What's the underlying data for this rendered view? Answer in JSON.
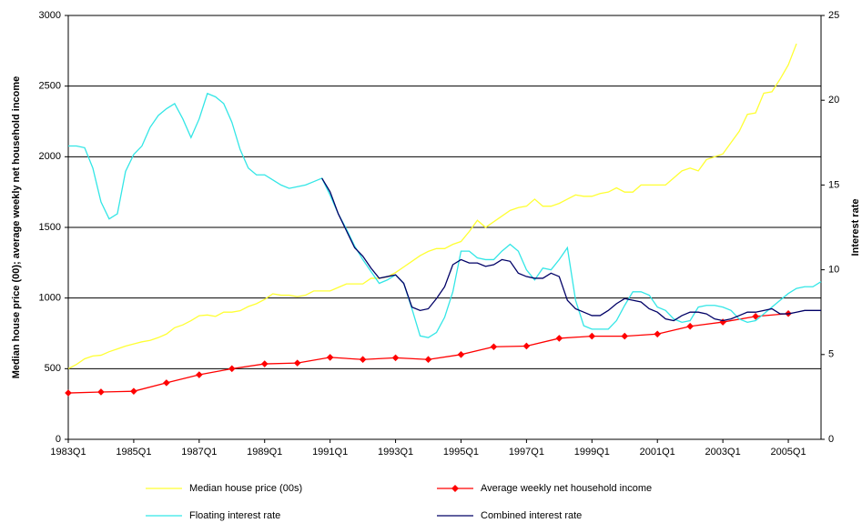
{
  "chart_data": {
    "type": "line",
    "left_axis_label": "Median house price (00); average weekly net household income",
    "right_axis_label": "Interest rate",
    "categories": [
      "1983Q1",
      null,
      null,
      null,
      null,
      null,
      null,
      null,
      "1985Q1",
      null,
      null,
      null,
      null,
      null,
      null,
      null,
      "1987Q1",
      null,
      null,
      null,
      null,
      null,
      null,
      null,
      "1989Q1",
      null,
      null,
      null,
      null,
      null,
      null,
      null,
      "1991Q1",
      null,
      null,
      null,
      null,
      null,
      null,
      null,
      "1993Q1",
      null,
      null,
      null,
      null,
      null,
      null,
      null,
      "1995Q1",
      null,
      null,
      null,
      null,
      null,
      null,
      null,
      "1997Q1",
      null,
      null,
      null,
      null,
      null,
      null,
      null,
      "1999Q1",
      null,
      null,
      null,
      null,
      null,
      null,
      null,
      "2001Q1",
      null,
      null,
      null,
      null,
      null,
      null,
      null,
      "2003Q1",
      null,
      null,
      null,
      null,
      null,
      null,
      null,
      "2005Q1",
      null,
      null,
      null,
      null
    ],
    "ylim": [
      0,
      3000
    ],
    "yticks": [
      0,
      500,
      1000,
      1500,
      2000,
      2500,
      3000
    ],
    "y2lim": [
      0,
      25
    ],
    "y2ticks": [
      0,
      5,
      10,
      15,
      20,
      25
    ],
    "grid": true,
    "legend": "bottom",
    "series": [
      {
        "name": "Median house price (00s)",
        "color": "#ffff33",
        "axis": "y",
        "values": [
          500,
          530,
          570,
          590,
          595,
          620,
          640,
          660,
          675,
          690,
          700,
          720,
          745,
          790,
          810,
          840,
          875,
          880,
          870,
          900,
          900,
          910,
          940,
          960,
          990,
          1030,
          1020,
          1020,
          1010,
          1020,
          1050,
          1050,
          1050,
          1075,
          1100,
          1100,
          1100,
          1140,
          1140,
          1150,
          1180,
          1220,
          1260,
          1300,
          1330,
          1350,
          1350,
          1380,
          1400,
          1470,
          1550,
          1500,
          1540,
          1580,
          1620,
          1640,
          1650,
          1700,
          1650,
          1650,
          1670,
          1700,
          1730,
          1720,
          1720,
          1740,
          1750,
          1780,
          1750,
          1750,
          1800,
          1800,
          1800,
          1800,
          1850,
          1900,
          1920,
          1900,
          1980,
          2000,
          2020,
          2100,
          2180,
          2300,
          2310,
          2450,
          2460,
          2550,
          2650,
          2800,
          null,
          null,
          null
        ]
      },
      {
        "name": "Average weekly net household income",
        "color": "#ff0000",
        "axis": "y",
        "marker": "diamond",
        "values": [
          328,
          null,
          null,
          null,
          335,
          null,
          null,
          null,
          340,
          null,
          null,
          null,
          400,
          null,
          null,
          null,
          457,
          null,
          null,
          null,
          500,
          null,
          null,
          null,
          534,
          null,
          null,
          null,
          540,
          null,
          null,
          null,
          580,
          null,
          null,
          null,
          565,
          null,
          null,
          null,
          577,
          null,
          null,
          null,
          565,
          null,
          null,
          null,
          600,
          null,
          null,
          null,
          655,
          null,
          null,
          null,
          660,
          null,
          null,
          null,
          715,
          null,
          null,
          null,
          730,
          null,
          null,
          null,
          730,
          null,
          null,
          null,
          745,
          null,
          null,
          null,
          800,
          null,
          null,
          null,
          830,
          null,
          null,
          null,
          870,
          null,
          null,
          null,
          890,
          null,
          null,
          null,
          null
        ]
      },
      {
        "name": "Floating interest rate",
        "color": "#33e6e6",
        "axis": "y2",
        "values": [
          17.3,
          17.3,
          17.2,
          16.0,
          14.0,
          13.0,
          13.3,
          15.8,
          16.8,
          17.3,
          18.4,
          19.1,
          19.5,
          19.8,
          18.9,
          17.8,
          18.9,
          20.4,
          20.2,
          19.8,
          18.7,
          17.1,
          16.0,
          15.6,
          15.6,
          15.3,
          15.0,
          14.8,
          14.9,
          15.0,
          15.2,
          15.4,
          14.4,
          13.3,
          12.4,
          11.4,
          10.6,
          9.9,
          9.2,
          9.4,
          9.7,
          9.2,
          7.7,
          6.1,
          6.0,
          6.3,
          7.2,
          8.7,
          11.1,
          11.1,
          10.7,
          10.6,
          10.6,
          11.1,
          11.5,
          11.1,
          10.0,
          9.4,
          10.1,
          10.0,
          10.6,
          11.3,
          8.2,
          6.7,
          6.5,
          6.5,
          6.5,
          7.0,
          7.9,
          8.7,
          8.7,
          8.5,
          7.8,
          7.6,
          7.1,
          6.9,
          7.0,
          7.8,
          7.9,
          7.9,
          7.8,
          7.6,
          7.1,
          6.9,
          7.0,
          7.4,
          7.8,
          8.2,
          8.6,
          8.9,
          9.0,
          9.0,
          9.3
        ]
      },
      {
        "name": "Combined interest rate",
        "color": "#000066",
        "axis": "y2",
        "values": [
          null,
          null,
          null,
          null,
          null,
          null,
          null,
          null,
          null,
          null,
          null,
          null,
          null,
          null,
          null,
          null,
          null,
          null,
          null,
          null,
          null,
          null,
          null,
          null,
          null,
          null,
          null,
          null,
          null,
          null,
          null,
          15.4,
          14.6,
          13.3,
          12.3,
          11.3,
          10.8,
          10.1,
          9.5,
          9.6,
          9.7,
          9.2,
          7.8,
          7.6,
          7.7,
          8.3,
          9.0,
          10.3,
          10.6,
          10.4,
          10.4,
          10.2,
          10.3,
          10.6,
          10.5,
          9.8,
          9.6,
          9.5,
          9.5,
          9.8,
          9.6,
          8.2,
          7.7,
          7.5,
          7.3,
          7.3,
          7.6,
          8.0,
          8.3,
          8.2,
          8.1,
          7.7,
          7.5,
          7.1,
          7.0,
          7.3,
          7.5,
          7.5,
          7.4,
          7.1,
          7.0,
          7.1,
          7.3,
          7.5,
          7.5,
          7.6,
          7.7,
          7.4,
          7.4,
          7.5,
          7.6,
          7.6,
          7.6
        ]
      }
    ]
  }
}
